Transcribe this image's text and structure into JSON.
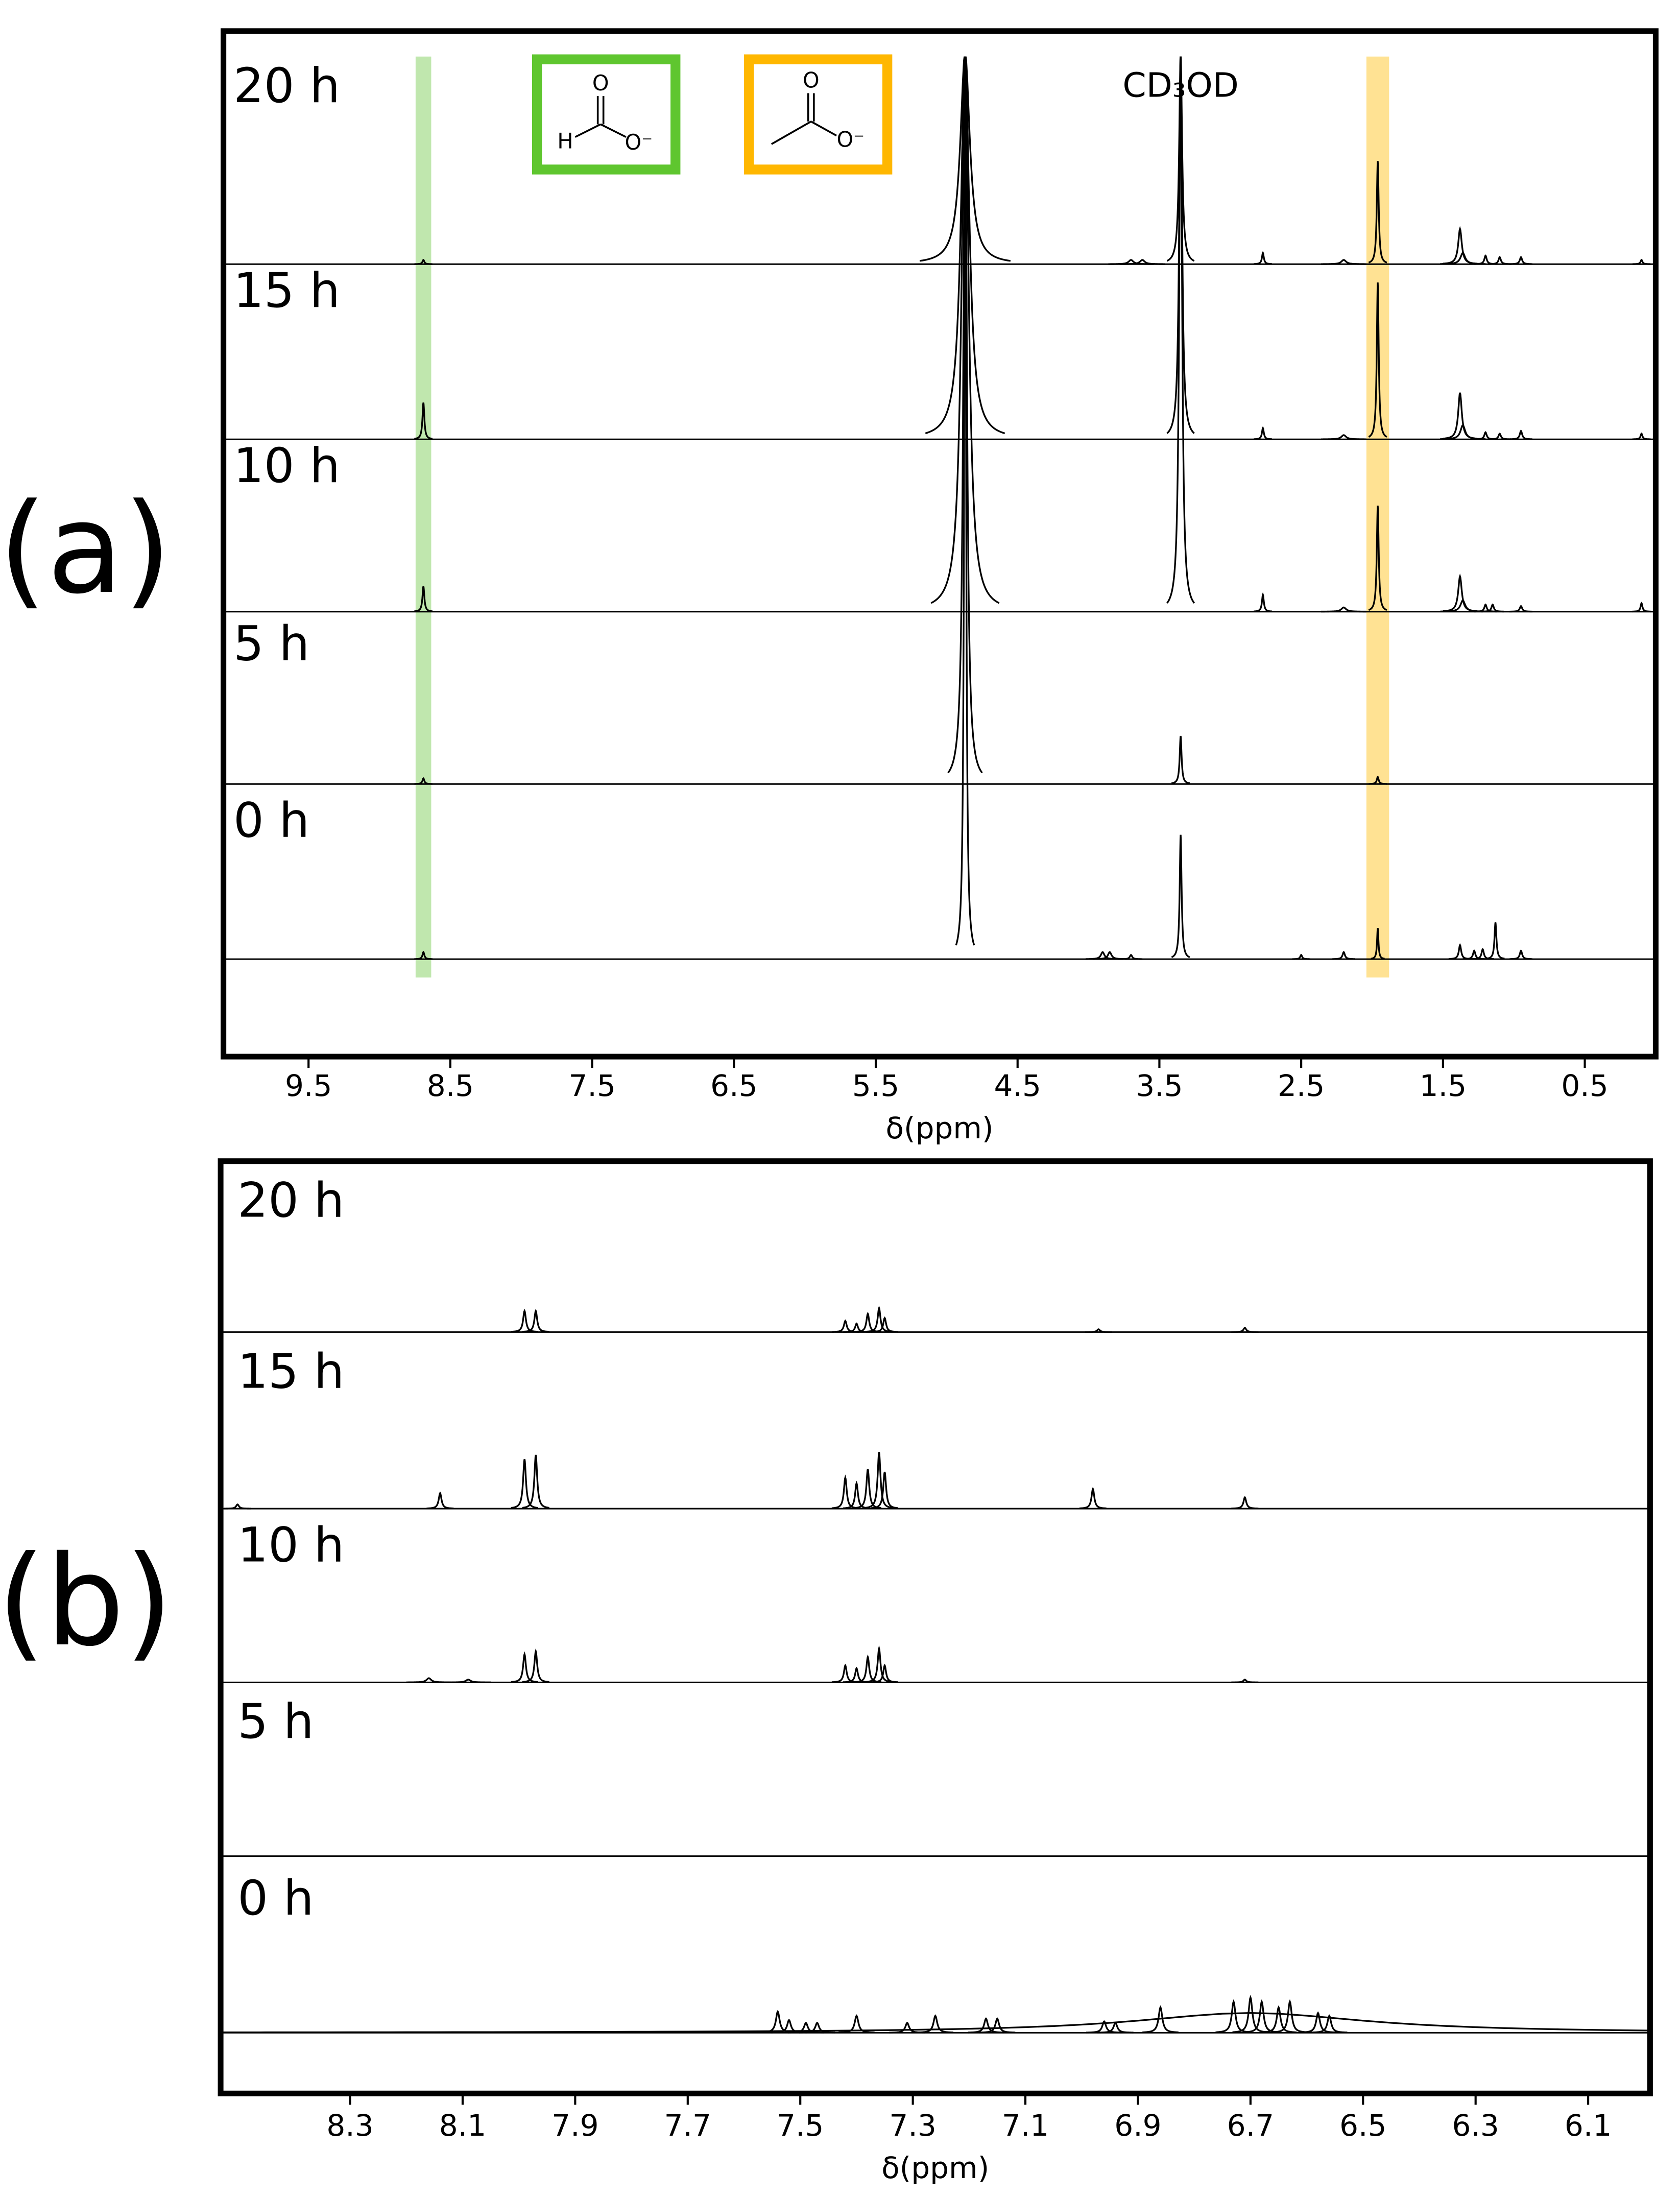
{
  "chart_data": [
    {
      "type": "spectrum",
      "panel_label": "(a)",
      "x_label": "δ(ppm)",
      "xlim": [
        10.1,
        0.0
      ],
      "xticks": [
        9.5,
        8.5,
        7.5,
        6.5,
        5.5,
        4.5,
        3.5,
        2.5,
        1.5,
        0.5
      ],
      "annotation": {
        "text": "CD₃OD",
        "x": 3.35
      },
      "highlights": [
        {
          "x": 8.69,
          "width": 0.11,
          "color": "#b5e3a0"
        },
        {
          "x": 1.96,
          "width": 0.16,
          "color": "#ffdd80"
        }
      ],
      "structures": [
        {
          "color": "#5fc62f",
          "atoms": [
            "O",
            "H",
            "O⁻"
          ]
        },
        {
          "color": "#ffb700",
          "atoms": [
            "O",
            "O⁻"
          ]
        }
      ],
      "series": [
        {
          "name": "20 h",
          "color": "#000000",
          "x": [
            8.69,
            4.87,
            3.35,
            3.7,
            3.62,
            2.77,
            2.2,
            1.96,
            1.38,
            1.36,
            1.2,
            1.1,
            0.95,
            0.1
          ],
          "values": [
            3,
            150,
            150,
            3,
            3,
            8,
            3,
            73,
            25,
            8,
            6,
            5,
            5,
            3
          ],
          "widths": [
            0.008,
            0.04,
            0.012,
            0.02,
            0.02,
            0.008,
            0.02,
            0.008,
            0.015,
            0.02,
            0.01,
            0.01,
            0.01,
            0.008
          ]
        },
        {
          "name": "15 h",
          "color": "#000000",
          "x": [
            8.69,
            4.87,
            3.35,
            2.77,
            2.2,
            1.96,
            1.38,
            1.36,
            1.2,
            1.1,
            0.95,
            0.1
          ],
          "values": [
            26,
            275,
            275,
            8,
            3,
            111,
            33,
            10,
            5,
            4,
            6,
            4
          ],
          "widths": [
            0.008,
            0.035,
            0.012,
            0.008,
            0.02,
            0.008,
            0.015,
            0.02,
            0.01,
            0.01,
            0.01,
            0.008
          ]
        },
        {
          "name": "10 h",
          "color": "#000000",
          "x": [
            8.69,
            4.87,
            3.35,
            2.77,
            2.2,
            1.96,
            1.38,
            1.36,
            1.2,
            1.15,
            0.95,
            0.1
          ],
          "values": [
            18,
            395,
            395,
            12,
            3,
            75,
            25,
            8,
            5,
            5,
            4,
            6
          ],
          "widths": [
            0.008,
            0.03,
            0.012,
            0.008,
            0.02,
            0.008,
            0.015,
            0.02,
            0.01,
            0.01,
            0.01,
            0.008
          ]
        },
        {
          "name": "5 h",
          "color": "#000000",
          "x": [
            8.69,
            4.87,
            3.35,
            1.96
          ],
          "values": [
            4,
            515,
            34,
            5
          ],
          "widths": [
            0.008,
            0.015,
            0.008,
            0.008
          ]
        },
        {
          "name": "0 h",
          "color": "#000000",
          "x": [
            8.69,
            4.87,
            3.9,
            3.85,
            3.7,
            3.35,
            2.5,
            2.2,
            1.96,
            1.38,
            1.28,
            1.22,
            1.13,
            0.95
          ],
          "values": [
            5,
            640,
            5,
            5,
            3,
            88,
            3,
            5,
            22,
            10,
            6,
            7,
            26,
            6
          ],
          "widths": [
            0.008,
            0.008,
            0.015,
            0.015,
            0.01,
            0.008,
            0.008,
            0.01,
            0.006,
            0.01,
            0.01,
            0.01,
            0.008,
            0.01
          ]
        }
      ]
    },
    {
      "type": "spectrum",
      "panel_label": "(b)",
      "x_label": "δ(ppm)",
      "xlim": [
        8.53,
        5.99
      ],
      "xticks": [
        8.3,
        8.1,
        7.9,
        7.7,
        7.5,
        7.3,
        7.1,
        6.9,
        6.7,
        6.5,
        6.3,
        6.1
      ],
      "series": [
        {
          "name": "20 h",
          "color": "#000000",
          "x": [
            7.99,
            7.97,
            7.42,
            7.4,
            7.38,
            7.36,
            7.35,
            6.97,
            6.71
          ],
          "values": [
            15,
            15,
            8,
            6,
            13,
            17,
            10,
            2,
            3
          ],
          "widths": [
            0.003,
            0.003,
            0.003,
            0.003,
            0.003,
            0.003,
            0.003,
            0.003,
            0.003
          ]
        },
        {
          "name": "15 h",
          "color": "#000000",
          "x": [
            8.5,
            8.14,
            7.99,
            7.97,
            7.42,
            7.4,
            7.38,
            7.36,
            7.35,
            6.98,
            6.71
          ],
          "values": [
            3,
            11,
            35,
            38,
            22,
            18,
            28,
            40,
            26,
            14,
            8
          ],
          "widths": [
            0.003,
            0.003,
            0.003,
            0.003,
            0.003,
            0.003,
            0.003,
            0.003,
            0.003,
            0.003,
            0.003
          ]
        },
        {
          "name": "10 h",
          "color": "#000000",
          "x": [
            8.16,
            8.09,
            7.99,
            7.97,
            7.42,
            7.4,
            7.38,
            7.36,
            7.35,
            6.71
          ],
          "values": [
            3,
            2,
            20,
            22,
            12,
            10,
            18,
            24,
            12,
            2
          ],
          "widths": [
            0.005,
            0.005,
            0.003,
            0.003,
            0.003,
            0.003,
            0.003,
            0.003,
            0.003,
            0.003
          ]
        },
        {
          "name": "5 h",
          "color": "#000000",
          "x": [],
          "values": [],
          "widths": []
        },
        {
          "name": "0 h",
          "color": "#000000",
          "x": [
            6.7,
            7.54,
            7.52,
            7.49,
            7.47,
            7.4,
            7.31,
            7.26,
            7.17,
            7.15,
            6.96,
            6.94,
            6.86,
            6.73,
            6.7,
            6.68,
            6.65,
            6.63,
            6.58,
            6.56
          ],
          "values": [
            14,
            15,
            9,
            7,
            7,
            12,
            7,
            12,
            10,
            10,
            8,
            7,
            18,
            22,
            25,
            22,
            18,
            22,
            14,
            12
          ],
          "widths": [
            0.25,
            0.004,
            0.004,
            0.004,
            0.004,
            0.004,
            0.004,
            0.004,
            0.004,
            0.004,
            0.004,
            0.004,
            0.004,
            0.004,
            0.004,
            0.004,
            0.004,
            0.004,
            0.004,
            0.004
          ]
        }
      ]
    }
  ]
}
